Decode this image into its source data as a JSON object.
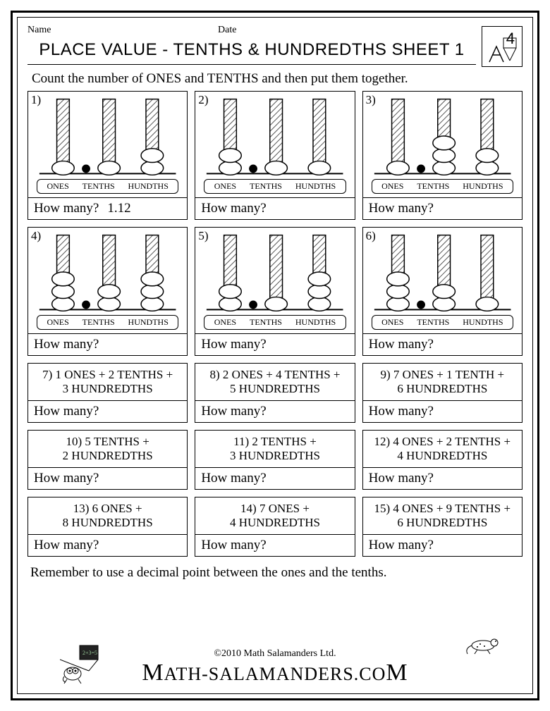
{
  "header": {
    "name_label": "Name",
    "date_label": "Date",
    "grade": "4"
  },
  "title": "PLACE VALUE - TENTHS & HUNDREDTHS SHEET 1",
  "instructions": "Count the number of ONES and TENTHS and then put them together.",
  "labels": {
    "ones": "ONES",
    "tenths": "TENTHS",
    "hundths": "HUNDTHS"
  },
  "how_many": "How many?",
  "abacus_problems": [
    {
      "num": "1)",
      "ones": 1,
      "tenths": 1,
      "hundths": 2,
      "answer": "1.12"
    },
    {
      "num": "2)",
      "ones": 2,
      "tenths": 1,
      "hundths": 1,
      "answer": ""
    },
    {
      "num": "3)",
      "ones": 1,
      "tenths": 3,
      "hundths": 2,
      "answer": ""
    },
    {
      "num": "4)",
      "ones": 3,
      "tenths": 2,
      "hundths": 3,
      "answer": ""
    },
    {
      "num": "5)",
      "ones": 2,
      "tenths": 1,
      "hundths": 3,
      "answer": ""
    },
    {
      "num": "6)",
      "ones": 3,
      "tenths": 2,
      "hundths": 1,
      "answer": ""
    }
  ],
  "text_problems": [
    {
      "num": "7)",
      "line1": "1 ONES + 2 TENTHS +",
      "line2": "3 HUNDREDTHS"
    },
    {
      "num": "8)",
      "line1": "2 ONES + 4 TENTHS +",
      "line2": "5 HUNDREDTHS"
    },
    {
      "num": "9)",
      "line1": "7 ONES + 1 TENTH +",
      "line2": "6 HUNDREDTHS"
    },
    {
      "num": "10)",
      "line1": "5 TENTHS +",
      "line2": "2 HUNDREDTHS"
    },
    {
      "num": "11)",
      "line1": "2 TENTHS +",
      "line2": "3 HUNDREDTHS"
    },
    {
      "num": "12)",
      "line1": "4 ONES + 2 TENTHS +",
      "line2": "4 HUNDREDTHS"
    },
    {
      "num": "13)",
      "line1": "6 ONES +",
      "line2": "8 HUNDREDTHS"
    },
    {
      "num": "14)",
      "line1": "7 ONES +",
      "line2": "4 HUNDREDTHS"
    },
    {
      "num": "15)",
      "line1": "4 ONES + 9 TENTHS +",
      "line2": "6 HUNDREDTHS"
    }
  ],
  "reminder": "Remember to use a decimal point between the ones and the tenths.",
  "footer": {
    "copyright": "©2010 Math Salamanders Ltd.",
    "brand_left": "ATH-SALAMANDERS.CO",
    "brand_m1": "M",
    "brand_m2": "M"
  },
  "style": {
    "colors": {
      "border": "#000000",
      "bg": "#ffffff",
      "hatch": "#888888"
    },
    "fonts": {
      "title": 24,
      "body": 19,
      "small": 14,
      "label": 12
    },
    "abacus": {
      "rod_width": 18,
      "bead_rx": 14,
      "bead_ry": 9,
      "dot_r": 6
    }
  }
}
